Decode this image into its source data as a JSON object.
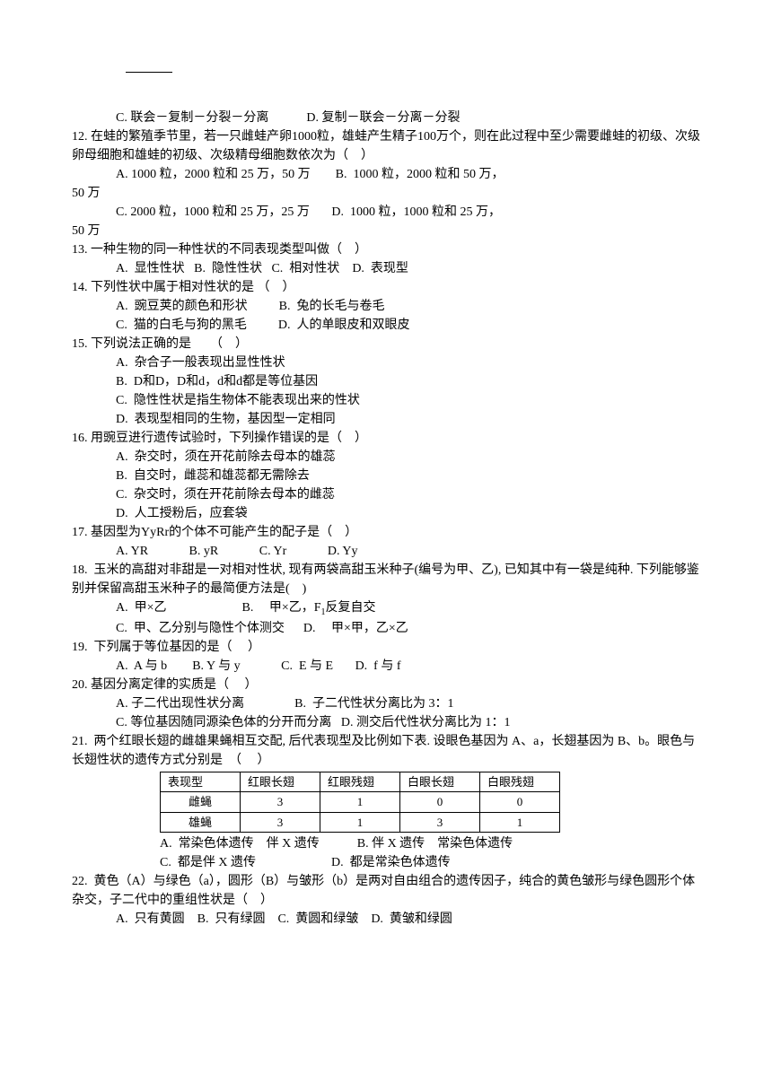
{
  "q11_tail": {
    "c": "C. 联会－复制－分裂－分离",
    "d": "D. 复制－联会－分离－分裂"
  },
  "q12": {
    "stem": "12. 在蛙的繁殖季节里，若一只雌蛙产卵1000粒，雄蛙产生精子100万个，则在此过程中至少需要雌蛙的初级、次级卵母细胞和雄蛙的初级、次级精母细胞数依次为（　）",
    "a": "A. 1000 粒，2000 粒和 25 万，50 万",
    "b": "B.  1000 粒，2000 粒和 50 万，",
    "b2": "50 万",
    "c": "C. 2000 粒，1000 粒和 25 万，25 万",
    "d": "D.  1000 粒，1000 粒和 25 万，",
    "d2": "50 万"
  },
  "q13": {
    "stem": "13. 一种生物的同一种性状的不同表现类型叫做（　）",
    "a": "A.  显性性状",
    "b": "B.  隐性性状",
    "c": "C.  相对性状",
    "d": "D.  表现型"
  },
  "q14": {
    "stem": "14. 下列性状中属于相对性状的是 （　）",
    "a": "A.  豌豆荚的颜色和形状",
    "b": "B.  兔的长毛与卷毛",
    "c": "C.  猫的白毛与狗的黑毛",
    "d": "D.  人的单眼皮和双眼皮"
  },
  "q15": {
    "stem": "15. 下列说法正确的是　　（　）",
    "a": "A.  杂合子一般表现出显性性状",
    "b": "B.  D和D，D和d，d和d都是等位基因",
    "c": "C.  隐性性状是指生物体不能表现出来的性状",
    "d": "D.  表现型相同的生物，基因型一定相同"
  },
  "q16": {
    "stem": "16. 用豌豆进行遗传试验时，下列操作错误的是（　）",
    "a": "A.  杂交时，须在开花前除去母本的雄蕊",
    "b": "B.  自交时，雌蕊和雄蕊都无需除去",
    "c": "C.  杂交时，须在开花前除去母本的雌蕊",
    "d": "D.  人工授粉后，应套袋"
  },
  "q17": {
    "stem": "17. 基因型为YyRr的个体不可能产生的配子是（　）",
    "a": "A. YR",
    "b": "B. yR",
    "c": "C. Yr",
    "d": "D. Yy"
  },
  "q18": {
    "stem": "18.  玉米的高甜对非甜是一对相对性状, 现有两袋高甜玉米种子(编号为甲、乙), 已知其中有一袋是纯种. 下列能够鉴别并保留高甜玉米种子的最简便方法是(　)",
    "a": "A.  甲×乙",
    "b": "B. 　甲×乙，F",
    "b_sub": "1",
    "b2": "反复自交",
    "c": "C.  甲、乙分别与隐性个体测交",
    "d": "D. 　甲×甲，乙×乙"
  },
  "q19": {
    "stem": "19.  下列属于等位基因的是（　 ）",
    "a": "A.  A 与 b",
    "b": "B. Y 与 y",
    "c": "C.  E 与 E",
    "d": "D.  f 与 f"
  },
  "q20": {
    "stem": "20. 基因分离定律的实质是（　 ）",
    "a": "A. 子二代出现性状分离",
    "b": "B.  子二代性状分离比为 3：1",
    "c": "C. 等位基因随同源染色体的分开而分离",
    "d": "D. 测交后代性状分离比为 1：1"
  },
  "q21": {
    "stem": "21.  两个红眼长翅的雌雄果蝇相互交配, 后代表现型及比例如下表. 设眼色基因为 A、a，长翅基因为 B、b。眼色与长翅性状的遗传方式分别是　（　 ）",
    "table": {
      "headers": [
        "表现型",
        "红眼长翅",
        "红眼残翅",
        "白眼长翅",
        "白眼残翅"
      ],
      "rows": [
        [
          "雌蝇",
          "3",
          "1",
          "0",
          "0"
        ],
        [
          "雄蝇",
          "3",
          "1",
          "3",
          "1"
        ]
      ]
    },
    "a": "A.  常染色体遗传　伴 X 遗传",
    "b": "B. 伴 X 遗传　常染色体遗传",
    "c": "C.  都是伴 X 遗传",
    "d": "D.  都是常染色体遗传"
  },
  "q22": {
    "stem": "22.  黄色（A）与绿色（a），圆形（B）与皱形（b）是两对自由组合的遗传因子，纯合的黄色皱形与绿色圆形个体杂交，子二代中的重组性状是（　）",
    "a": "A.  只有黄圆",
    "b": "B.  只有绿圆",
    "c": "C.  黄圆和绿皱",
    "d": "D.  黄皱和绿圆"
  }
}
